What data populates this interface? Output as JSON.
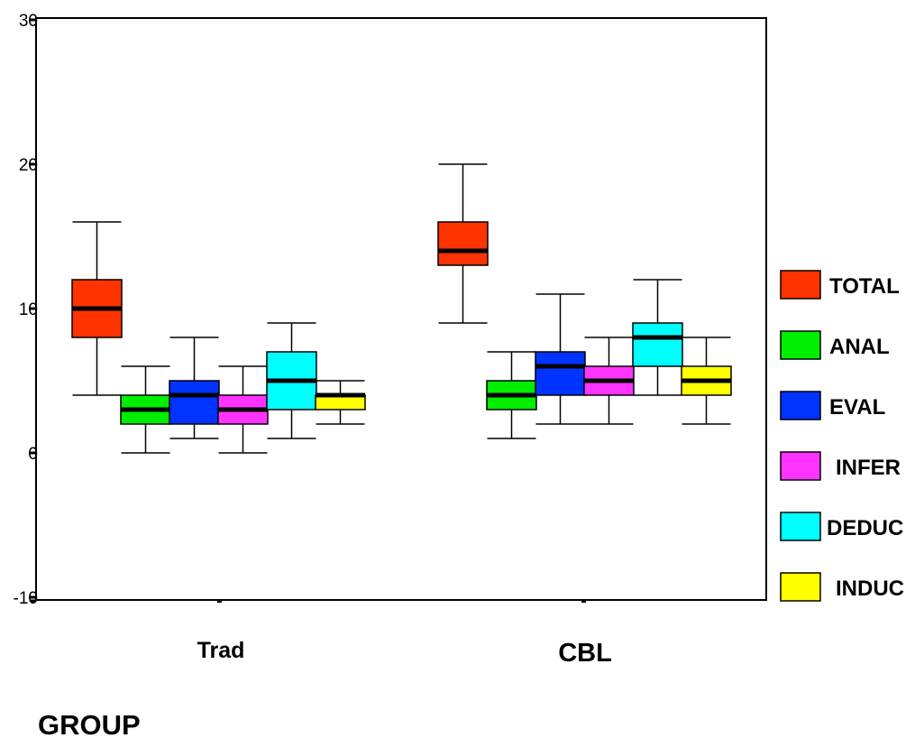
{
  "chart_data": {
    "type": "boxplot",
    "xlabel": "GROUP",
    "ylim": [
      -10,
      30
    ],
    "yticks": [
      -10,
      0,
      10,
      20,
      30
    ],
    "ytick_labels": [
      "-10",
      "0",
      "10",
      "20",
      "30"
    ],
    "categories": [
      "Trad",
      "CBL"
    ],
    "legend_position": "right",
    "grid": false,
    "series": [
      {
        "name": "TOTAL",
        "color": "#ff3300",
        "boxes": [
          {
            "min": 4,
            "q1": 8,
            "median": 10,
            "q3": 12,
            "max": 16
          },
          {
            "min": 9,
            "q1": 13,
            "median": 14,
            "q3": 16,
            "max": 20
          }
        ]
      },
      {
        "name": "ANAL",
        "color": "#00ee00",
        "boxes": [
          {
            "min": 0,
            "q1": 2,
            "median": 3,
            "q3": 4,
            "max": 6
          },
          {
            "min": 1,
            "q1": 3,
            "median": 4,
            "q3": 5,
            "max": 7
          }
        ]
      },
      {
        "name": "EVAL",
        "color": "#0033ff",
        "boxes": [
          {
            "min": 1,
            "q1": 2,
            "median": 4,
            "q3": 5,
            "max": 8
          },
          {
            "min": 2,
            "q1": 4,
            "median": 6,
            "q3": 7,
            "max": 11
          }
        ]
      },
      {
        "name": "INFER",
        "color": "#ff33ff",
        "boxes": [
          {
            "min": 0,
            "q1": 2,
            "median": 3,
            "q3": 4,
            "max": 6
          },
          {
            "min": 2,
            "q1": 4,
            "median": 5,
            "q3": 6,
            "max": 8
          }
        ]
      },
      {
        "name": "DEDUC",
        "color": "#00ffff",
        "boxes": [
          {
            "min": 1,
            "q1": 3,
            "median": 5,
            "q3": 7,
            "max": 9
          },
          {
            "min": 4,
            "q1": 6,
            "median": 8,
            "q3": 9,
            "max": 12
          }
        ]
      },
      {
        "name": "INDUC",
        "color": "#ffff00",
        "boxes": [
          {
            "min": 2,
            "q1": 3,
            "median": 4,
            "q3": 4,
            "max": 5
          },
          {
            "min": 2,
            "q1": 4,
            "median": 5,
            "q3": 6,
            "max": 8
          }
        ]
      }
    ]
  }
}
